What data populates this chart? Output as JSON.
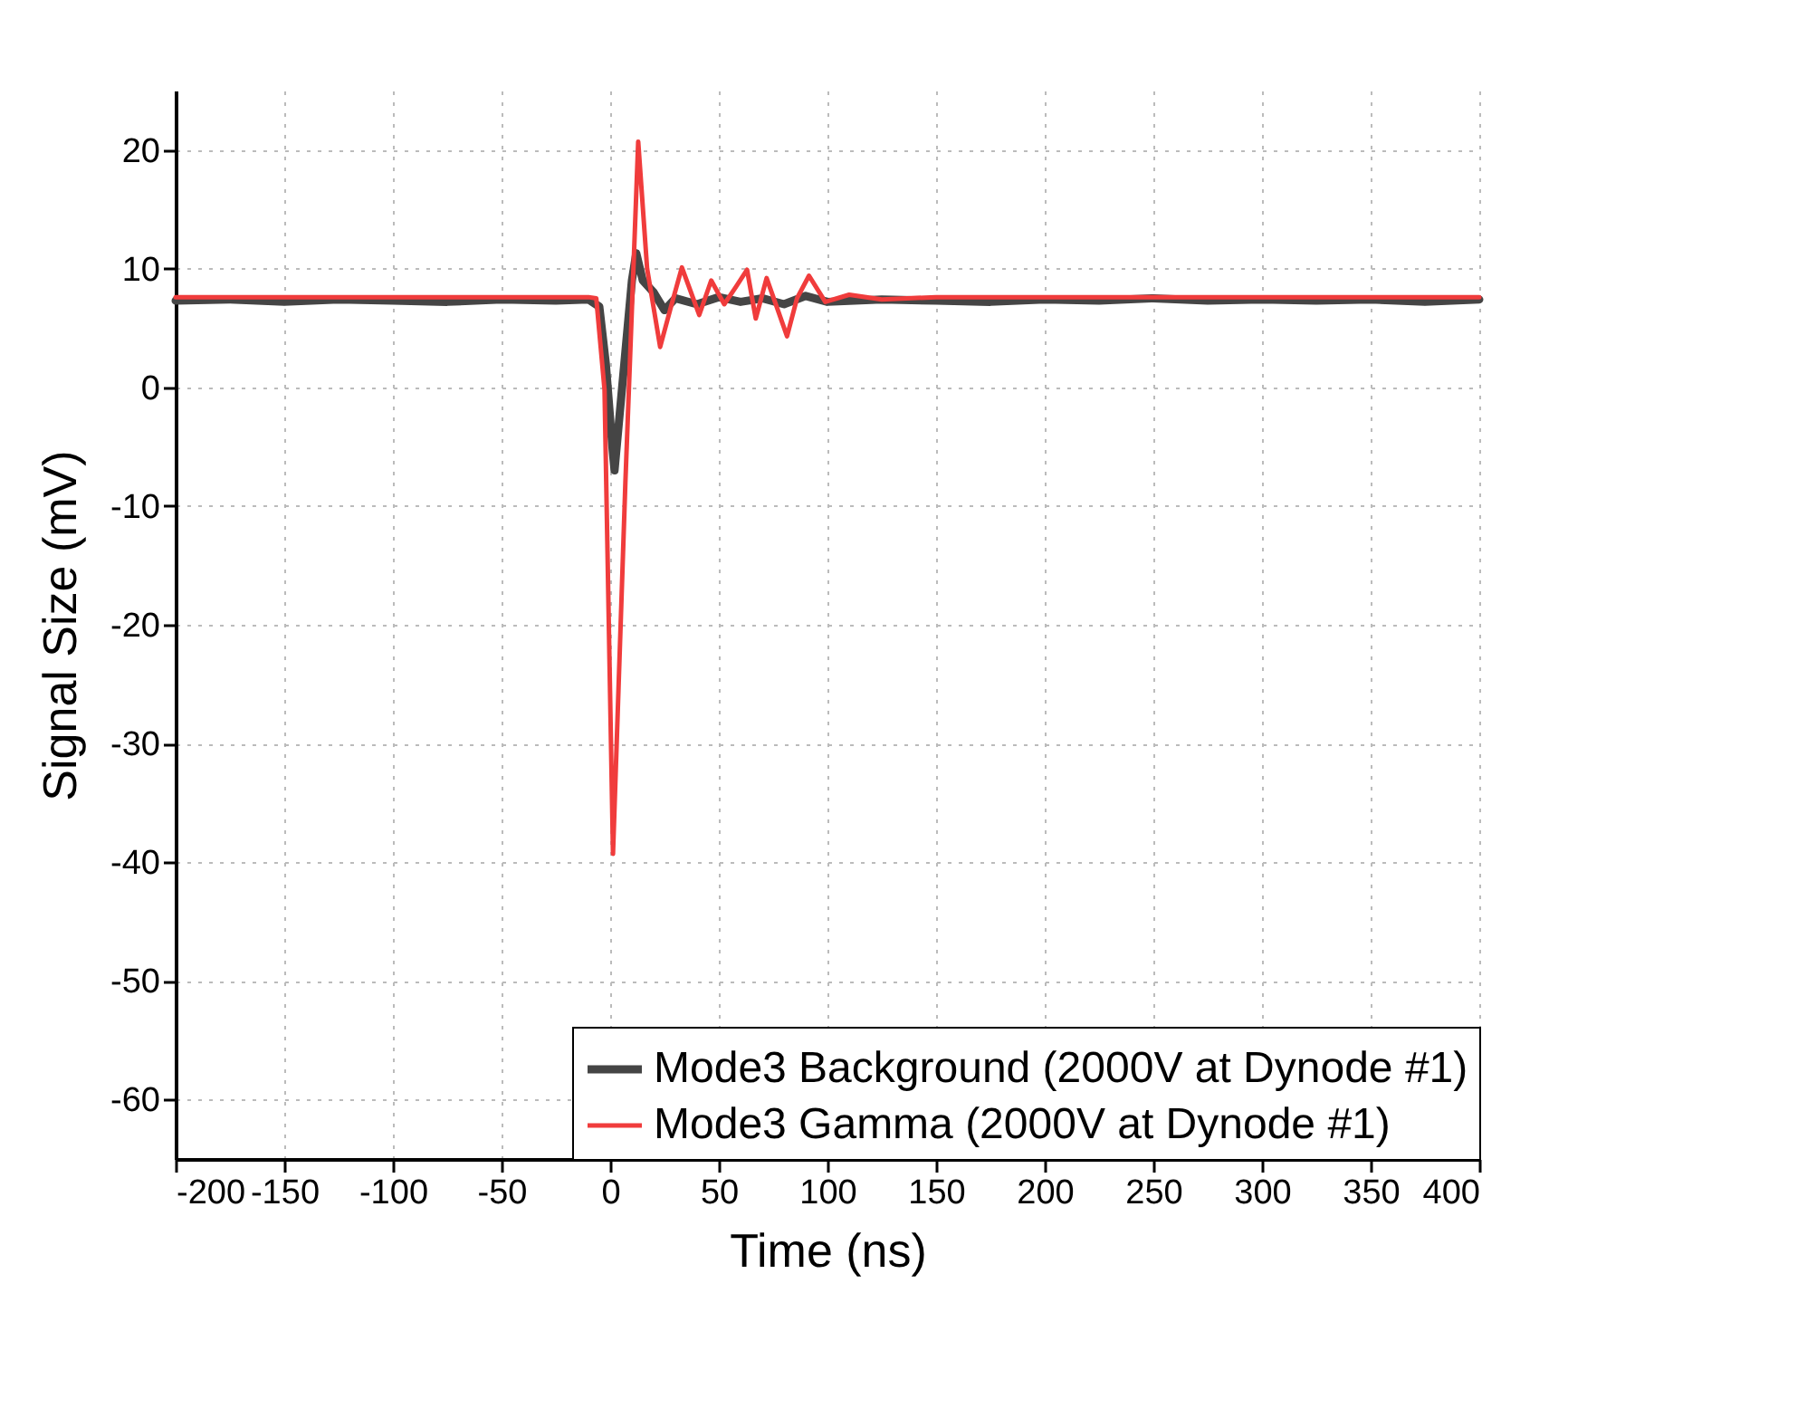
{
  "chart_data": {
    "type": "line",
    "xlabel": "Time (ns)",
    "ylabel": "Signal Size (mV)",
    "xlim": [
      -200,
      400
    ],
    "ylim": [
      -65,
      25
    ],
    "xticks": [
      -200,
      -150,
      -100,
      -50,
      0,
      50,
      100,
      150,
      200,
      250,
      300,
      350,
      400
    ],
    "yticks": [
      -60,
      -50,
      -40,
      -30,
      -20,
      -10,
      0,
      10,
      20
    ],
    "grid": true,
    "legend": "bottom right",
    "line_style": "solid",
    "marker": "none",
    "series": [
      {
        "name": "Mode3 Background (2000V at Dynode #1)",
        "color": "#454545",
        "x": [
          -200,
          -175,
          -150,
          -125,
          -100,
          -75,
          -50,
          -25,
          -10,
          -5,
          -2,
          1,
          2,
          4,
          7,
          10,
          12,
          15,
          20,
          25,
          30,
          40,
          50,
          60,
          70,
          80,
          90,
          100,
          125,
          150,
          175,
          200,
          225,
          250,
          275,
          300,
          325,
          350,
          375,
          400
        ],
        "values": [
          7.3,
          7.4,
          7.2,
          7.4,
          7.3,
          7.2,
          7.4,
          7.3,
          7.4,
          6.8,
          2,
          -5,
          -7,
          -3,
          3,
          9,
          11.3,
          9,
          8,
          6.5,
          7.5,
          7,
          7.6,
          7.2,
          7.5,
          7,
          7.7,
          7.2,
          7.4,
          7.3,
          7.2,
          7.4,
          7.3,
          7.5,
          7.3,
          7.4,
          7.3,
          7.4,
          7.2,
          7.4
        ]
      },
      {
        "name": "Mode3 Gamma (2000V at Dynode #1)",
        "color": "#f03c3c",
        "x": [
          -200,
          -100,
          -10,
          -6.4,
          -2.6,
          1.3,
          7,
          12.9,
          17,
          23,
          28,
          33,
          41,
          46.5,
          52.5,
          58,
          63,
          67,
          72,
          81.4,
          86,
          91.5,
          99,
          110,
          125,
          150,
          200,
          300,
          400
        ],
        "values": [
          7.6,
          7.6,
          7.6,
          7.5,
          -0.2,
          -39.3,
          -8,
          20.7,
          10,
          3.4,
          6.8,
          10.1,
          6.1,
          9.0,
          7.0,
          8.5,
          9.9,
          5.8,
          9.2,
          4.3,
          7.5,
          9.4,
          7.2,
          7.8,
          7.4,
          7.6,
          7.6,
          7.6,
          7.6
        ]
      }
    ]
  }
}
